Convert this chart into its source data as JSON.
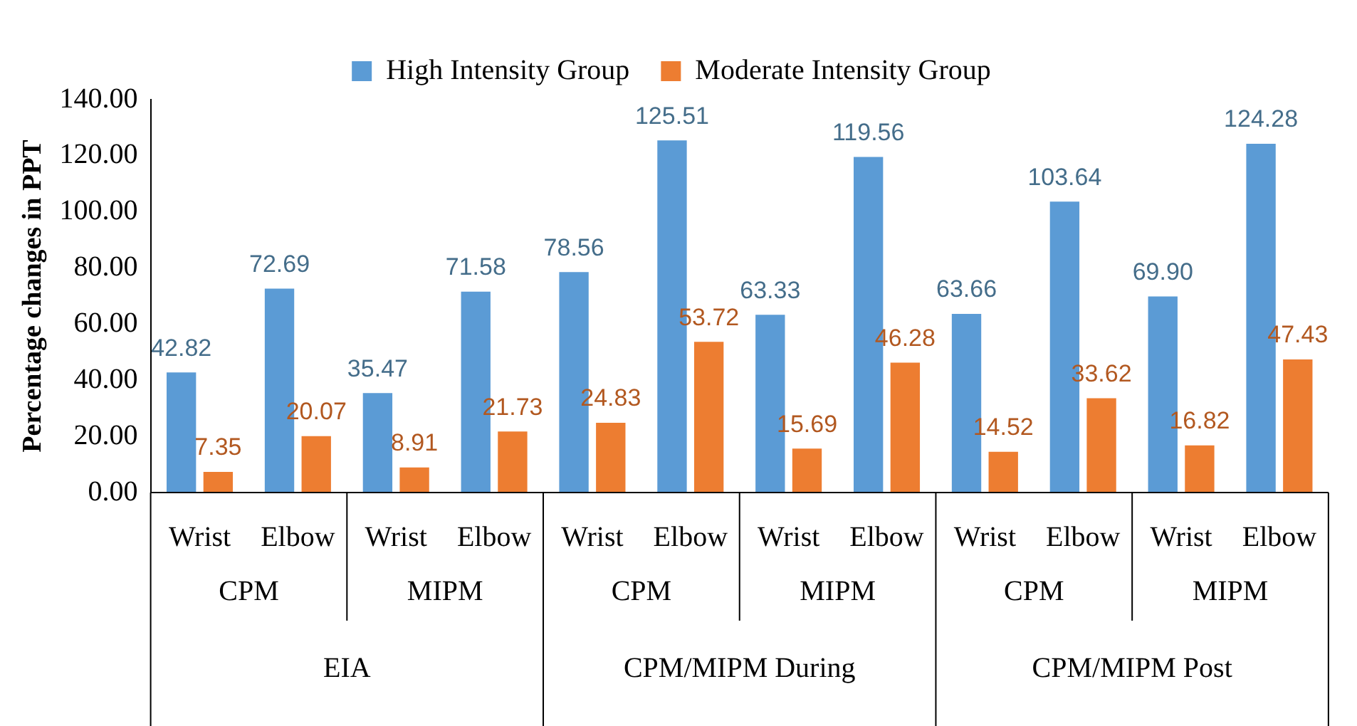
{
  "chart_data": {
    "type": "bar",
    "ylabel": "Percentage changes in PPT",
    "categories": [
      "Wrist",
      "Elbow",
      "Wrist",
      "Elbow",
      "Wrist",
      "Elbow",
      "Wrist",
      "Elbow",
      "Wrist",
      "Elbow",
      "Wrist",
      "Elbow"
    ],
    "series": [
      {
        "name": "High Intensity Group",
        "color": "#5b9bd5",
        "values": [
          42.82,
          72.69,
          35.47,
          71.58,
          78.56,
          125.51,
          63.33,
          119.56,
          63.66,
          103.64,
          69.9,
          124.28
        ],
        "value_labels": [
          "42.82",
          "72.69",
          "35.47",
          "71.58",
          "78.56",
          "125.51",
          "63.33",
          "119.56",
          "63.66",
          "103.64",
          "69.90",
          "124.28"
        ]
      },
      {
        "name": "Moderate Intensity Group",
        "color": "#ed7d31",
        "values": [
          7.35,
          20.07,
          8.91,
          21.73,
          24.83,
          53.72,
          15.69,
          46.28,
          14.52,
          33.62,
          16.82,
          47.43
        ],
        "value_labels": [
          "7.35",
          "20.07",
          "8.91",
          "21.73",
          "24.83",
          "53.72",
          "15.69",
          "46.28",
          "14.52",
          "33.62",
          "16.82",
          "47.43"
        ]
      }
    ],
    "ylim": [
      0,
      140
    ],
    "yticks": [
      {
        "value": 0,
        "label": "0.00"
      },
      {
        "value": 20,
        "label": "20.00"
      },
      {
        "value": 40,
        "label": "40.00"
      },
      {
        "value": 60,
        "label": "60.00"
      },
      {
        "value": 80,
        "label": "80.00"
      },
      {
        "value": 100,
        "label": "100.00"
      },
      {
        "value": 120,
        "label": "120.00"
      },
      {
        "value": 140,
        "label": "140.00"
      }
    ],
    "annotations": [
      "CPM",
      "MIPM",
      "CPM",
      "MIPM",
      "CPM",
      "MIPM",
      "EIA",
      "CPM/MIPM During",
      "CPM/MIPM Post"
    ],
    "legend": "top",
    "grid": false
  }
}
